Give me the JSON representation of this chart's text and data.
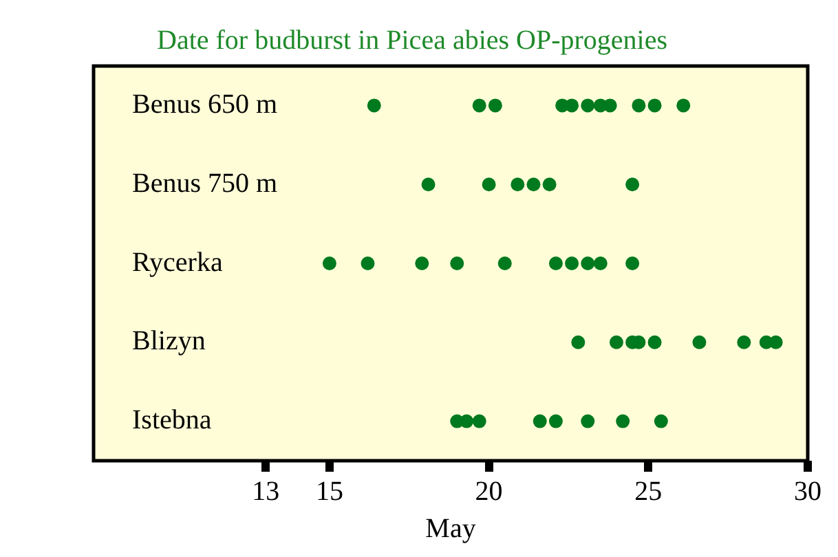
{
  "chart_data": {
    "type": "scatter",
    "title": "Date for budburst in Picea abies OP-progenies",
    "xlabel": "May",
    "orientation": "horizontal",
    "categories": [
      "Benus 650 m",
      "Benus 750 m",
      "Rycerka",
      "Blizyn",
      "Istebna"
    ],
    "series": [
      {
        "color": "#007a1e",
        "values": [
          16.4,
          18.1,
          15.0,
          22.8,
          19.0
        ]
      },
      {
        "color": "#007a1e",
        "values": [
          19.7,
          20.0,
          16.2,
          24.0,
          19.3
        ]
      },
      {
        "color": "#007a1e",
        "values": [
          20.2,
          20.9,
          17.9,
          24.5,
          19.7
        ]
      },
      {
        "color": "#007a1e",
        "values": [
          22.3,
          21.4,
          19.0,
          24.7,
          21.6
        ]
      },
      {
        "color": "#007a1e",
        "values": [
          22.6,
          21.9,
          20.5,
          25.2,
          22.1
        ]
      },
      {
        "color": "#007a1e",
        "values": [
          23.1,
          24.5,
          22.1,
          26.6,
          23.1
        ]
      },
      {
        "color": "#007a1e",
        "values": [
          23.5,
          null,
          22.6,
          28.0,
          24.2
        ]
      },
      {
        "color": "#007a1e",
        "values": [
          23.8,
          null,
          23.1,
          28.7,
          25.4
        ]
      },
      {
        "color": "#007a1e",
        "values": [
          24.7,
          null,
          23.5,
          29.0,
          null
        ]
      },
      {
        "color": "#007a1e",
        "values": [
          25.2,
          null,
          24.5,
          null,
          null
        ]
      },
      {
        "color": "#007a1e",
        "values": [
          26.1,
          null,
          null,
          null,
          null
        ]
      }
    ],
    "xlim": [
      7.6,
      30
    ],
    "xticks": [
      13,
      15,
      20,
      25,
      30
    ],
    "grid": false,
    "legend": false,
    "marker": "circle"
  }
}
